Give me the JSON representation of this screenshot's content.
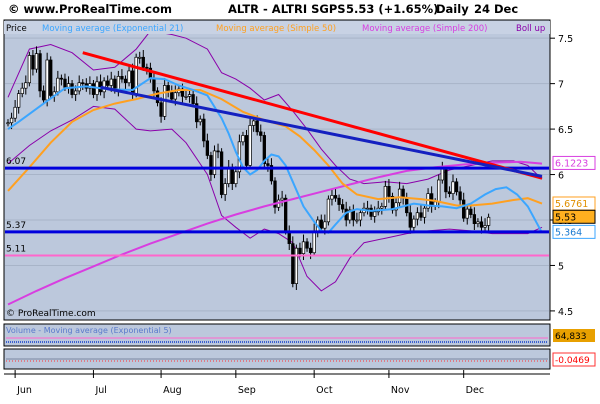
{
  "header": {
    "site": "© www.ProRealTime.com",
    "ticker": "ALTR - ALTRI SGPS",
    "price_change": "5.53 (+1.65%)",
    "period": "Daily",
    "date": "24 Dec"
  },
  "legend": {
    "price": "Price",
    "ema21": "Moving average (Exponential 21)",
    "sma50": "Moving average (Simple 50)",
    "sma200": "Moving average (Simple 200)",
    "boll": "Boll up"
  },
  "watermark": "© ProRealTime.com",
  "volume_panel": {
    "label": "Volume - Moving average (Exponential 5)",
    "value": "64,833"
  },
  "osc_panel": {
    "value": "-0.0469"
  },
  "colors": {
    "plot_bg": "#bcc8dc",
    "grid": "#a8b4c8",
    "ema21": "#3ba6ff",
    "sma50": "#ffa020",
    "sma200": "#d83ee0",
    "bollinger": "#8a00aa",
    "trend_red": "#ff0000",
    "trend_blue": "#1420c0",
    "level_blue": "#0000dd",
    "level_pink": "#ff66cc",
    "candle": "#000000"
  },
  "chart_data": {
    "type": "candlestick",
    "x_axis_months": [
      "Jun",
      "Jul",
      "Aug",
      "Sep",
      "Oct",
      "Nov",
      "Dec"
    ],
    "y_ticks": [
      "4.5",
      "5",
      "5.5",
      "6",
      "6.5",
      "7",
      "7.5"
    ],
    "y_range": [
      4.4,
      7.7
    ],
    "level_labels": {
      "l607": "6.07",
      "l537": "5.37",
      "l511": "5.11"
    },
    "right_tags": {
      "sma200": "6.1223",
      "sma50": "5.6761",
      "price": "5.53",
      "ema21": "5.364"
    },
    "horizontal_levels": [
      6.07,
      5.37,
      5.11
    ],
    "trendlines": [
      {
        "name": "resistance-red",
        "from": [
          21,
          7.34
        ],
        "to": [
          150,
          5.96
        ]
      },
      {
        "name": "trend-blue",
        "from": [
          26,
          6.96
        ],
        "to": [
          150,
          5.98
        ]
      }
    ],
    "closes": [
      6.57,
      6.62,
      6.74,
      6.89,
      6.95,
      7.01,
      7.31,
      7.16,
      7.33,
      6.92,
      6.82,
      7.26,
      6.87,
      6.91,
      7.06,
      7.05,
      6.96,
      7.0,
      6.88,
      6.92,
      7.01,
      7.0,
      6.95,
      7.0,
      6.88,
      7.02,
      6.91,
      7.03,
      6.98,
      7.05,
      6.93,
      7.08,
      7.05,
      7.01,
      7.14,
      6.89,
      7.29,
      7.29,
      7.18,
      7.17,
      7.05,
      6.92,
      6.79,
      6.64,
      6.98,
      6.92,
      6.83,
      6.9,
      6.94,
      6.86,
      6.86,
      6.88,
      6.78,
      6.58,
      6.61,
      6.37,
      6.21,
      6.0,
      6.26,
      6.25,
      5.78,
      5.9,
      6.08,
      5.9,
      6.03,
      6.36,
      6.43,
      6.1,
      6.54,
      6.59,
      6.47,
      6.43,
      6.12,
      6.1,
      5.93,
      5.64,
      5.72,
      5.74,
      5.38,
      5.24,
      4.8,
      5.19,
      5.13,
      5.26,
      5.19,
      5.14,
      5.38,
      5.5,
      5.41,
      5.48,
      5.73,
      5.77,
      5.74,
      5.67,
      5.62,
      5.5,
      5.61,
      5.5,
      5.5,
      5.58,
      5.63,
      5.63,
      5.54,
      5.59,
      5.63,
      5.65,
      5.87,
      5.76,
      5.61,
      5.69,
      5.84,
      5.74,
      5.58,
      5.42,
      5.51,
      5.58,
      5.53,
      5.63,
      5.79,
      5.65,
      5.7,
      5.94,
      6.06,
      5.81,
      5.79,
      5.92,
      5.81,
      5.72,
      5.52,
      5.62,
      5.56,
      5.46,
      5.48,
      5.42,
      5.44,
      5.53
    ],
    "series": [
      {
        "name": "Moving average (Exponential 21)",
        "key": "ema21",
        "points": [
          [
            0,
            6.5
          ],
          [
            3,
            6.58
          ],
          [
            10,
            6.78
          ],
          [
            16,
            6.95
          ],
          [
            22,
            6.97
          ],
          [
            28,
            6.94
          ],
          [
            35,
            6.93
          ],
          [
            40,
            7.06
          ],
          [
            44,
            7.05
          ],
          [
            48,
            6.98
          ],
          [
            52,
            6.93
          ],
          [
            56,
            6.87
          ],
          [
            60,
            6.62
          ],
          [
            62,
            6.45
          ],
          [
            64,
            6.25
          ],
          [
            66,
            6.08
          ],
          [
            68,
            6.0
          ],
          [
            70,
            6.05
          ],
          [
            72,
            6.15
          ],
          [
            74,
            6.22
          ],
          [
            76,
            6.2
          ],
          [
            78,
            6.1
          ],
          [
            80,
            5.92
          ],
          [
            83,
            5.65
          ],
          [
            86,
            5.48
          ],
          [
            88,
            5.38
          ],
          [
            90,
            5.36
          ],
          [
            92,
            5.45
          ],
          [
            95,
            5.58
          ],
          [
            98,
            5.62
          ],
          [
            102,
            5.6
          ],
          [
            108,
            5.62
          ],
          [
            114,
            5.68
          ],
          [
            118,
            5.66
          ],
          [
            122,
            5.65
          ],
          [
            126,
            5.63
          ],
          [
            130,
            5.68
          ],
          [
            134,
            5.78
          ],
          [
            137,
            5.84
          ],
          [
            140,
            5.86
          ],
          [
            143,
            5.78
          ],
          [
            146,
            5.65
          ],
          [
            150,
            5.36
          ]
        ]
      },
      {
        "name": "Moving average (Simple 50)",
        "key": "sma50",
        "points": [
          [
            0,
            5.82
          ],
          [
            6,
            6.08
          ],
          [
            12,
            6.35
          ],
          [
            18,
            6.58
          ],
          [
            24,
            6.71
          ],
          [
            30,
            6.78
          ],
          [
            36,
            6.83
          ],
          [
            42,
            6.89
          ],
          [
            48,
            6.93
          ],
          [
            54,
            6.93
          ],
          [
            60,
            6.83
          ],
          [
            66,
            6.69
          ],
          [
            72,
            6.6
          ],
          [
            78,
            6.53
          ],
          [
            82,
            6.42
          ],
          [
            86,
            6.27
          ],
          [
            90,
            6.1
          ],
          [
            94,
            5.9
          ],
          [
            98,
            5.78
          ],
          [
            104,
            5.73
          ],
          [
            110,
            5.75
          ],
          [
            116,
            5.73
          ],
          [
            120,
            5.71
          ],
          [
            126,
            5.66
          ],
          [
            130,
            5.66
          ],
          [
            136,
            5.68
          ],
          [
            142,
            5.72
          ],
          [
            146,
            5.74
          ],
          [
            150,
            5.68
          ]
        ]
      },
      {
        "name": "Moving average (Simple 200)",
        "key": "sma200",
        "points": [
          [
            0,
            4.57
          ],
          [
            8,
            4.72
          ],
          [
            16,
            4.86
          ],
          [
            24,
            4.99
          ],
          [
            32,
            5.12
          ],
          [
            40,
            5.24
          ],
          [
            48,
            5.35
          ],
          [
            56,
            5.46
          ],
          [
            64,
            5.56
          ],
          [
            72,
            5.65
          ],
          [
            80,
            5.73
          ],
          [
            88,
            5.81
          ],
          [
            96,
            5.89
          ],
          [
            104,
            5.97
          ],
          [
            112,
            6.04
          ],
          [
            120,
            6.08
          ],
          [
            128,
            6.11
          ],
          [
            136,
            6.13
          ],
          [
            144,
            6.14
          ],
          [
            150,
            6.12
          ]
        ]
      },
      {
        "name": "Bollinger upper",
        "key": "boll_up",
        "points": [
          [
            0,
            6.85
          ],
          [
            6,
            7.38
          ],
          [
            12,
            7.43
          ],
          [
            18,
            7.34
          ],
          [
            24,
            7.15
          ],
          [
            30,
            7.18
          ],
          [
            36,
            7.38
          ],
          [
            40,
            7.58
          ],
          [
            46,
            7.54
          ],
          [
            50,
            7.5
          ],
          [
            56,
            7.38
          ],
          [
            60,
            7.12
          ],
          [
            64,
            7.05
          ],
          [
            68,
            6.95
          ],
          [
            72,
            6.82
          ],
          [
            76,
            6.88
          ],
          [
            80,
            6.7
          ],
          [
            84,
            6.5
          ],
          [
            88,
            6.28
          ],
          [
            92,
            6.1
          ],
          [
            96,
            5.95
          ],
          [
            100,
            5.9
          ],
          [
            106,
            5.92
          ],
          [
            112,
            5.9
          ],
          [
            118,
            5.95
          ],
          [
            124,
            6.05
          ],
          [
            130,
            6.1
          ],
          [
            136,
            6.15
          ],
          [
            142,
            6.15
          ],
          [
            146,
            6.1
          ],
          [
            150,
            5.95
          ]
        ]
      },
      {
        "name": "Bollinger lower",
        "key": "boll_low",
        "points": [
          [
            0,
            6.12
          ],
          [
            6,
            6.32
          ],
          [
            12,
            6.48
          ],
          [
            18,
            6.6
          ],
          [
            24,
            6.75
          ],
          [
            30,
            6.72
          ],
          [
            36,
            6.5
          ],
          [
            40,
            6.48
          ],
          [
            46,
            6.5
          ],
          [
            50,
            6.35
          ],
          [
            56,
            6.0
          ],
          [
            60,
            5.55
          ],
          [
            64,
            5.42
          ],
          [
            68,
            5.3
          ],
          [
            72,
            5.4
          ],
          [
            76,
            5.35
          ],
          [
            80,
            5.25
          ],
          [
            84,
            4.88
          ],
          [
            88,
            4.72
          ],
          [
            92,
            4.82
          ],
          [
            96,
            5.08
          ],
          [
            100,
            5.25
          ],
          [
            106,
            5.3
          ],
          [
            112,
            5.35
          ],
          [
            118,
            5.38
          ],
          [
            124,
            5.4
          ],
          [
            130,
            5.38
          ],
          [
            136,
            5.35
          ],
          [
            142,
            5.35
          ],
          [
            146,
            5.35
          ],
          [
            150,
            5.42
          ]
        ]
      }
    ]
  }
}
